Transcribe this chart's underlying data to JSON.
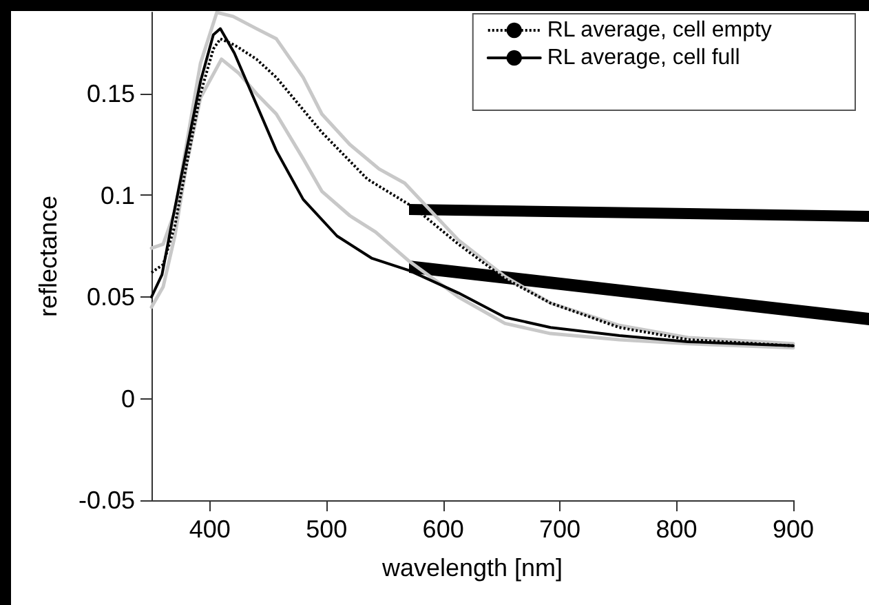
{
  "chart_data": {
    "type": "line",
    "xlabel": "wavelength [nm]",
    "ylabel": "reflectance",
    "xlim": [
      350,
      900
    ],
    "xticks": [
      400,
      500,
      600,
      700,
      800,
      900
    ],
    "ylim": [
      -0.05,
      0.19
    ],
    "yticks": [
      -0.05,
      0,
      0.05,
      0.1,
      0.15
    ],
    "grid": false,
    "legend": "top right",
    "marker": "none",
    "series": [
      {
        "color": "#c8c8c8",
        "line_style": "solid",
        "x": [
          350,
          360,
          370,
          380,
          392,
          406,
          420,
          440,
          457,
          480,
          496,
          520,
          545,
          567,
          590,
          613,
          653,
          692,
          751,
          810,
          900
        ],
        "values": [
          0.074,
          0.076,
          0.092,
          0.125,
          0.165,
          0.19,
          0.188,
          0.182,
          0.177,
          0.158,
          0.14,
          0.125,
          0.113,
          0.106,
          0.092,
          0.078,
          0.06,
          0.047,
          0.036,
          0.03,
          0.027
        ]
      },
      {
        "color": "#c8c8c8",
        "line_style": "solid",
        "x": [
          350,
          360,
          370,
          380,
          392,
          410,
          425,
          440,
          457,
          480,
          496,
          520,
          542,
          570,
          613,
          653,
          692,
          751,
          810,
          900
        ],
        "values": [
          0.045,
          0.055,
          0.08,
          0.115,
          0.148,
          0.167,
          0.16,
          0.15,
          0.14,
          0.118,
          0.102,
          0.09,
          0.082,
          0.068,
          0.05,
          0.037,
          0.032,
          0.029,
          0.027,
          0.025
        ]
      },
      {
        "name": "RL average, cell empty",
        "color": "#000000",
        "line_style": "dotted",
        "x": [
          350,
          360,
          370,
          380,
          392,
          403,
          409,
          421,
          440,
          457,
          496,
          535,
          575,
          613,
          653,
          692,
          751,
          810,
          900
        ],
        "values": [
          0.062,
          0.066,
          0.085,
          0.115,
          0.15,
          0.172,
          0.177,
          0.174,
          0.167,
          0.158,
          0.131,
          0.108,
          0.094,
          0.076,
          0.059,
          0.047,
          0.035,
          0.029,
          0.026
        ]
      },
      {
        "name": "RL average, cell full",
        "color": "#000000",
        "line_style": "solid",
        "x": [
          350,
          359,
          368,
          380,
          392,
          403,
          409,
          421,
          439,
          457,
          480,
          509,
          539,
          571,
          613,
          653,
          692,
          751,
          810,
          900
        ],
        "values": [
          0.05,
          0.061,
          0.088,
          0.122,
          0.156,
          0.179,
          0.182,
          0.17,
          0.146,
          0.122,
          0.098,
          0.08,
          0.069,
          0.063,
          0.052,
          0.04,
          0.035,
          0.031,
          0.028,
          0.026
        ]
      }
    ]
  }
}
